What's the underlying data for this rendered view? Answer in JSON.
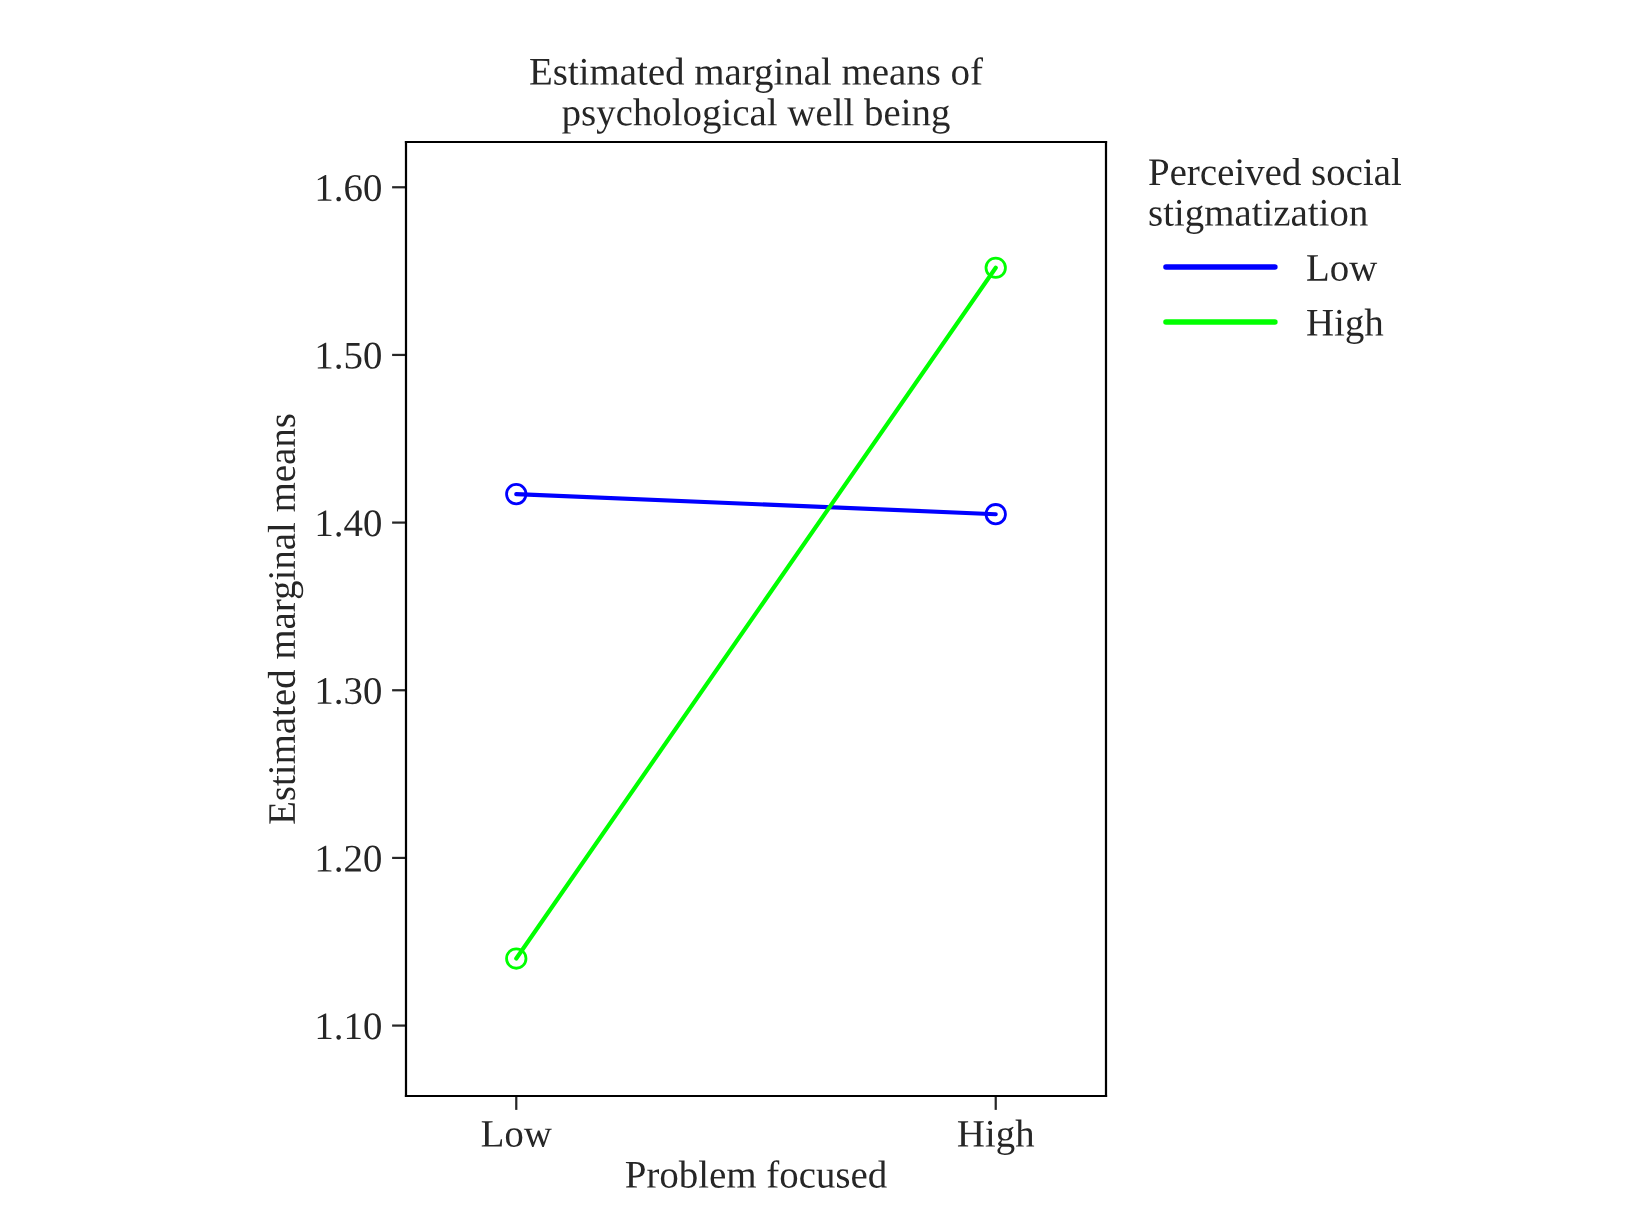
{
  "chart_data": {
    "type": "line",
    "title": "Estimated marginal means of\npsychological well being",
    "xlabel": "Problem focused",
    "ylabel": "Estimated marginal means",
    "legend_title": "Perceived social\nstigmatization",
    "categories": [
      "Low",
      "High"
    ],
    "series": [
      {
        "name": "Low",
        "color": "#0000ff",
        "values": [
          1.417,
          1.405
        ]
      },
      {
        "name": "High",
        "color": "#00ff00",
        "values": [
          1.14,
          1.552
        ]
      }
    ],
    "ylim": [
      1.058,
      1.627
    ],
    "yticks": [
      {
        "value": 1.1,
        "label": "1.10"
      },
      {
        "value": 1.2,
        "label": "1.20"
      },
      {
        "value": 1.3,
        "label": "1.30"
      },
      {
        "value": 1.4,
        "label": "1.40"
      },
      {
        "value": 1.5,
        "label": "1.50"
      },
      {
        "value": 1.6,
        "label": "1.60"
      }
    ],
    "grid": false,
    "legend": "top right",
    "marker": "circle",
    "line_style": "solid"
  }
}
